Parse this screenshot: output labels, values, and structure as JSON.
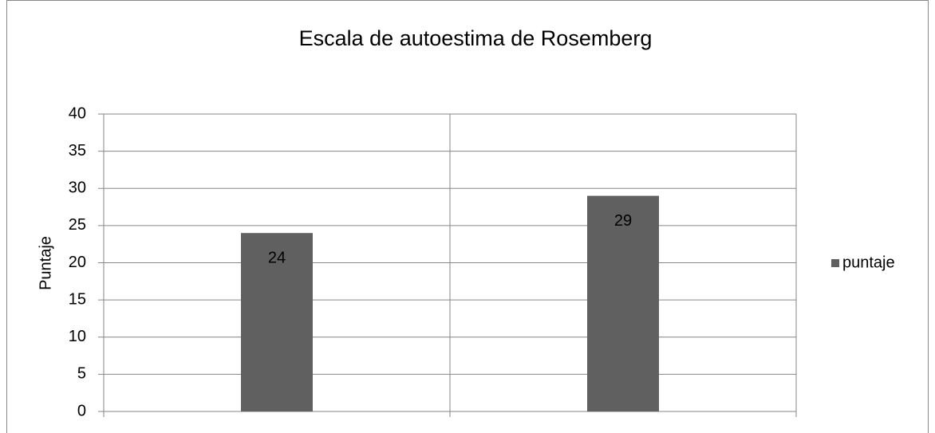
{
  "chart_data": {
    "type": "bar",
    "title": "Escala de autoestima de Rosemberg",
    "y_label": "Puntaje",
    "categories": [
      null,
      null
    ],
    "series": [
      {
        "name": "puntaje",
        "color": "#606060",
        "values": [
          24,
          29
        ]
      }
    ],
    "ylim": [
      0,
      40
    ],
    "yticks": [
      0,
      5,
      10,
      15,
      20,
      25,
      30,
      35,
      40
    ],
    "grid": true,
    "legend": "right"
  }
}
